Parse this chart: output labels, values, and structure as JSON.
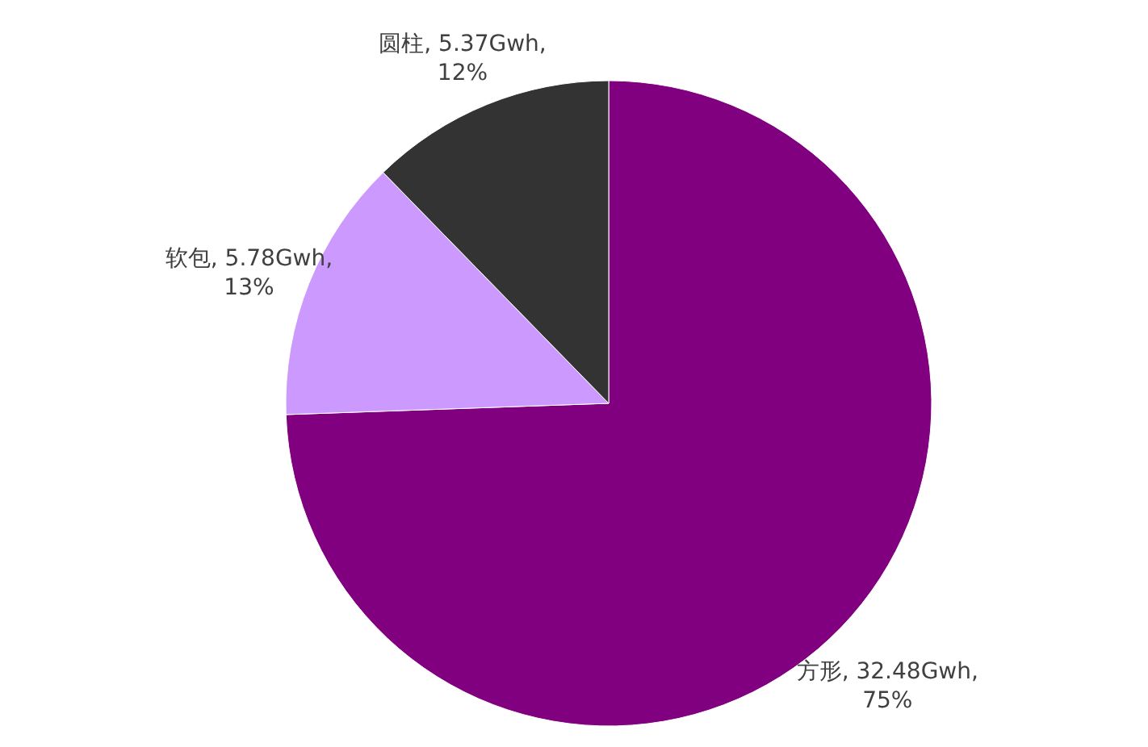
{
  "chart_data": {
    "type": "pie",
    "categories": [
      "方形",
      "软包",
      "圆柱"
    ],
    "values": [
      32.48,
      5.78,
      5.37
    ],
    "colors": [
      "#800080",
      "#cc99ff",
      "#333333"
    ],
    "value_labels": [
      "32.48Gwh, 75%",
      "5.78Gwh, 13%",
      "5.37Gwh, 12%"
    ],
    "legend": false
  }
}
